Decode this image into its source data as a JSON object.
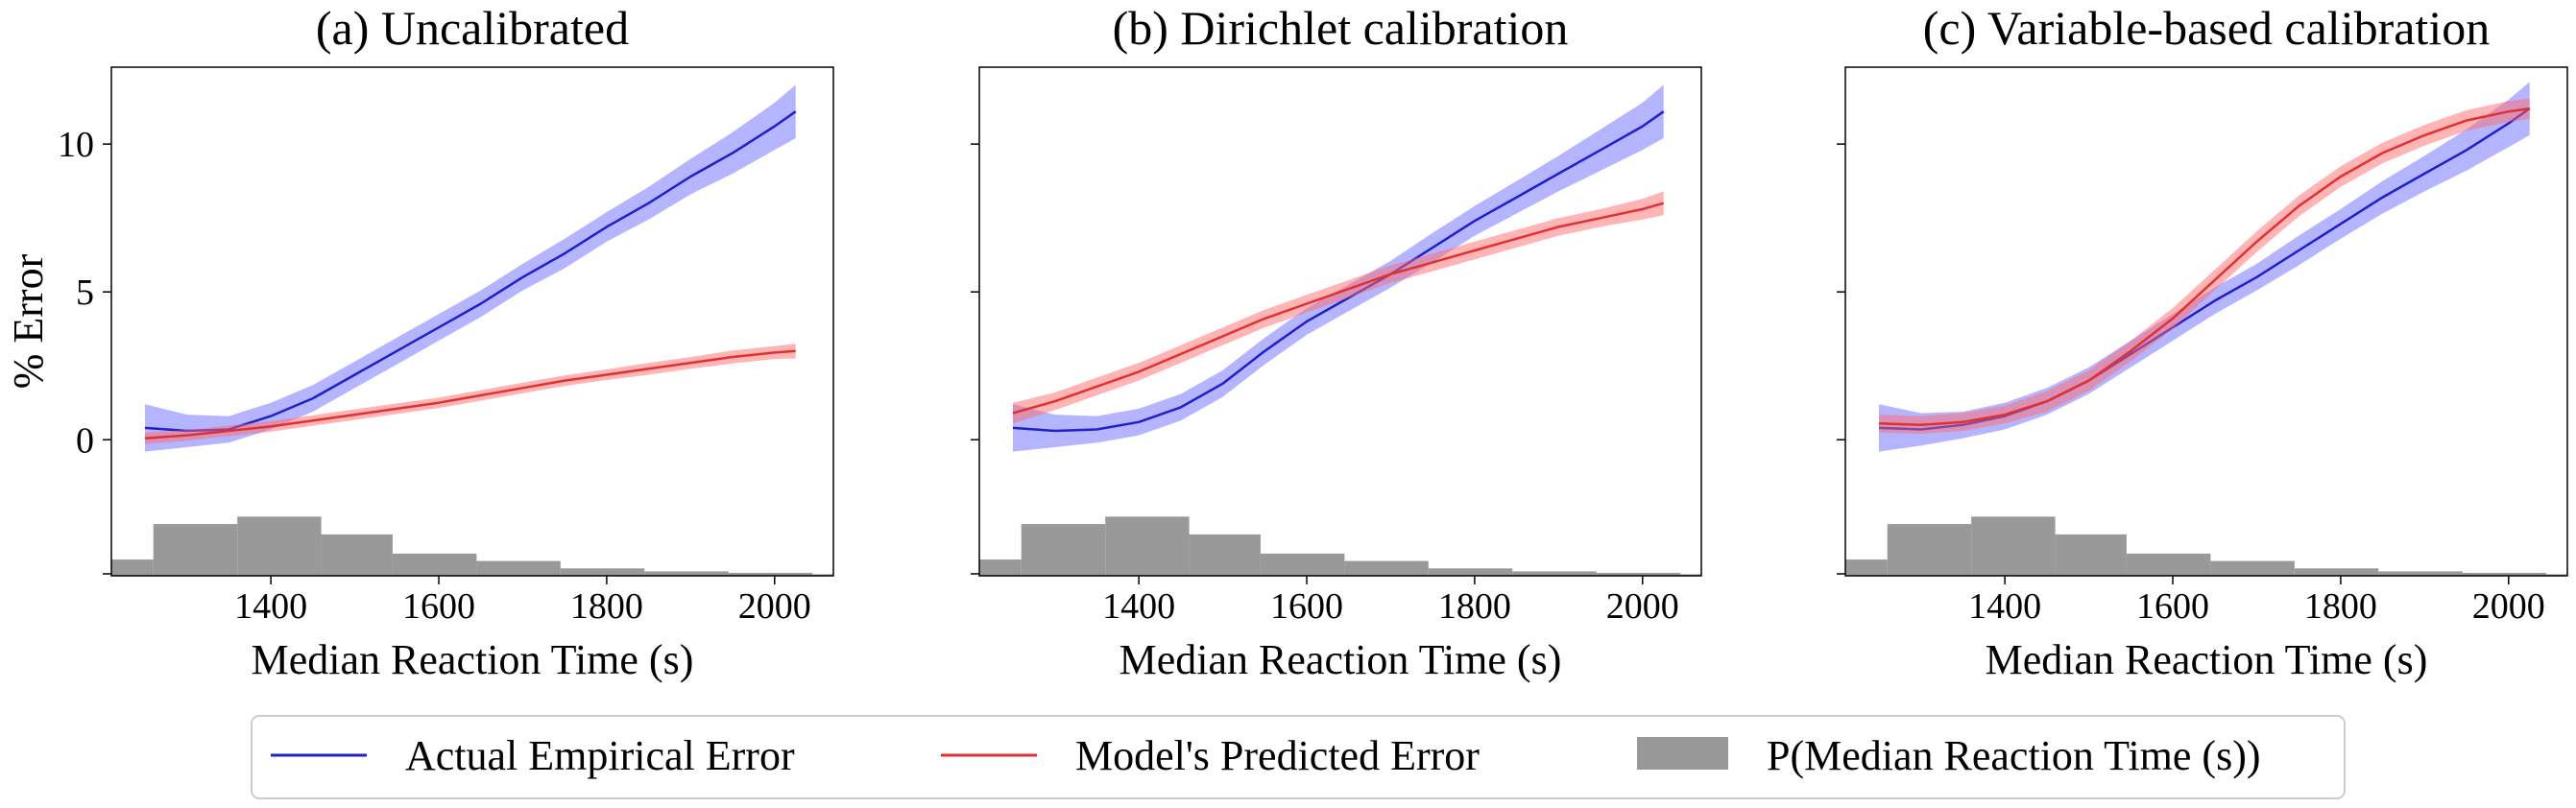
{
  "chart_data": [
    {
      "type": "line",
      "title": "(a) Uncalibrated",
      "xlabel": "Median Reaction Time (s)",
      "ylabel": "% Error",
      "xlim": [
        1210,
        2070
      ],
      "ylim": [
        -4.6,
        12.6
      ],
      "xticks": [
        "1400",
        "1600",
        "1800",
        "2000"
      ],
      "yticks": [
        "0",
        "5",
        "10"
      ],
      "series": [
        {
          "name": "Actual Empirical Error",
          "color": "#1f1fcc",
          "band_color": "#6b6bff",
          "x": [
            1250,
            1300,
            1350,
            1400,
            1450,
            1500,
            1550,
            1600,
            1650,
            1700,
            1750,
            1800,
            1850,
            1900,
            1950,
            2000,
            2025
          ],
          "y": [
            0.4,
            0.3,
            0.35,
            0.8,
            1.4,
            2.2,
            3.0,
            3.8,
            4.6,
            5.5,
            6.3,
            7.2,
            8.0,
            8.9,
            9.7,
            10.6,
            11.1
          ],
          "band": [
            0.8,
            0.55,
            0.45,
            0.45,
            0.45,
            0.45,
            0.45,
            0.45,
            0.45,
            0.45,
            0.5,
            0.5,
            0.55,
            0.6,
            0.7,
            0.8,
            0.9
          ]
        },
        {
          "name": "Model's Predicted Error",
          "color": "#e03030",
          "band_color": "#ff6b6b",
          "x": [
            1250,
            1300,
            1350,
            1400,
            1450,
            1500,
            1550,
            1600,
            1650,
            1700,
            1750,
            1800,
            1850,
            1900,
            1950,
            2000,
            2025
          ],
          "y": [
            0.05,
            0.15,
            0.3,
            0.45,
            0.65,
            0.85,
            1.05,
            1.25,
            1.5,
            1.75,
            2.0,
            2.2,
            2.4,
            2.6,
            2.8,
            2.95,
            3.0
          ],
          "band": [
            0.2,
            0.18,
            0.18,
            0.18,
            0.18,
            0.18,
            0.18,
            0.18,
            0.18,
            0.18,
            0.18,
            0.18,
            0.2,
            0.2,
            0.22,
            0.22,
            0.25
          ]
        }
      ],
      "histogram": {
        "name": "P(Median Reaction Time (s))",
        "color": "#999999",
        "bin_edges": [
          1210,
          1260,
          1360,
          1460,
          1545,
          1645,
          1745,
          1845,
          1945,
          2045,
          2070
        ],
        "values": [
          -4.05,
          -2.85,
          -2.6,
          -3.2,
          -3.85,
          -4.1,
          -4.35,
          -4.45,
          -4.5,
          -4.55
        ]
      }
    },
    {
      "type": "line",
      "title": "(b) Dirichlet calibration",
      "xlabel": "Median Reaction Time (s)",
      "xlim": [
        1210,
        2070
      ],
      "ylim": [
        -4.6,
        12.6
      ],
      "xticks": [
        "1400",
        "1600",
        "1800",
        "2000"
      ],
      "series": [
        {
          "name": "Actual Empirical Error",
          "color": "#1f1fcc",
          "band_color": "#6b6bff",
          "x": [
            1250,
            1300,
            1350,
            1400,
            1450,
            1500,
            1550,
            1600,
            1650,
            1700,
            1750,
            1800,
            1850,
            1900,
            1950,
            2000,
            2025
          ],
          "y": [
            0.4,
            0.3,
            0.35,
            0.6,
            1.1,
            1.9,
            3.0,
            4.0,
            4.8,
            5.6,
            6.5,
            7.4,
            8.2,
            9.0,
            9.8,
            10.6,
            11.1
          ],
          "band": [
            0.8,
            0.55,
            0.45,
            0.45,
            0.45,
            0.45,
            0.45,
            0.45,
            0.45,
            0.45,
            0.5,
            0.5,
            0.55,
            0.6,
            0.7,
            0.8,
            0.9
          ]
        },
        {
          "name": "Model's Predicted Error",
          "color": "#e03030",
          "band_color": "#ff6b6b",
          "x": [
            1250,
            1300,
            1350,
            1400,
            1450,
            1500,
            1550,
            1600,
            1650,
            1700,
            1750,
            1800,
            1850,
            1900,
            1950,
            2000,
            2025
          ],
          "y": [
            0.9,
            1.3,
            1.8,
            2.3,
            2.9,
            3.5,
            4.1,
            4.6,
            5.1,
            5.6,
            6.0,
            6.4,
            6.8,
            7.2,
            7.5,
            7.8,
            8.0
          ],
          "band": [
            0.35,
            0.3,
            0.3,
            0.3,
            0.3,
            0.3,
            0.3,
            0.3,
            0.3,
            0.3,
            0.3,
            0.3,
            0.3,
            0.3,
            0.3,
            0.35,
            0.4
          ]
        }
      ],
      "histogram": {
        "name": "P(Median Reaction Time (s))",
        "color": "#999999",
        "bin_edges": [
          1210,
          1260,
          1360,
          1460,
          1545,
          1645,
          1745,
          1845,
          1945,
          2045,
          2070
        ],
        "values": [
          -4.05,
          -2.85,
          -2.6,
          -3.2,
          -3.85,
          -4.1,
          -4.35,
          -4.45,
          -4.5,
          -4.55
        ]
      }
    },
    {
      "type": "line",
      "title": "(c) Variable-based calibration",
      "xlabel": "Median Reaction Time (s)",
      "xlim": [
        1210,
        2070
      ],
      "ylim": [
        -4.6,
        12.6
      ],
      "xticks": [
        "1400",
        "1600",
        "1800",
        "2000"
      ],
      "series": [
        {
          "name": "Actual Empirical Error",
          "color": "#1f1fcc",
          "band_color": "#6b6bff",
          "x": [
            1250,
            1300,
            1350,
            1400,
            1450,
            1500,
            1550,
            1600,
            1650,
            1700,
            1750,
            1800,
            1850,
            1900,
            1950,
            2000,
            2025
          ],
          "y": [
            0.4,
            0.35,
            0.5,
            0.8,
            1.3,
            2.0,
            2.9,
            3.8,
            4.7,
            5.5,
            6.4,
            7.3,
            8.2,
            9.0,
            9.8,
            10.7,
            11.2
          ],
          "band": [
            0.8,
            0.55,
            0.45,
            0.45,
            0.45,
            0.45,
            0.45,
            0.45,
            0.45,
            0.45,
            0.5,
            0.5,
            0.55,
            0.6,
            0.7,
            0.8,
            0.9
          ]
        },
        {
          "name": "Model's Predicted Error",
          "color": "#e03030",
          "band_color": "#ff6b6b",
          "x": [
            1250,
            1300,
            1350,
            1400,
            1450,
            1500,
            1550,
            1600,
            1650,
            1700,
            1750,
            1800,
            1850,
            1900,
            1950,
            2000,
            2025
          ],
          "y": [
            0.55,
            0.5,
            0.6,
            0.85,
            1.3,
            2.0,
            3.0,
            4.1,
            5.4,
            6.7,
            7.9,
            8.9,
            9.7,
            10.3,
            10.8,
            11.1,
            11.2
          ],
          "band": [
            0.3,
            0.3,
            0.3,
            0.3,
            0.35,
            0.35,
            0.35,
            0.35,
            0.35,
            0.35,
            0.35,
            0.35,
            0.35,
            0.35,
            0.35,
            0.35,
            0.35
          ]
        }
      ],
      "histogram": {
        "name": "P(Median Reaction Time (s))",
        "color": "#999999",
        "bin_edges": [
          1210,
          1260,
          1360,
          1460,
          1545,
          1645,
          1745,
          1845,
          1945,
          2045,
          2070
        ],
        "values": [
          -4.05,
          -2.85,
          -2.6,
          -3.2,
          -3.85,
          -4.1,
          -4.35,
          -4.45,
          -4.5,
          -4.55
        ]
      }
    }
  ],
  "legend": {
    "items": [
      {
        "label": "Actual Empirical Error",
        "kind": "line",
        "color": "#1f1fcc"
      },
      {
        "label": "Model's Predicted Error",
        "kind": "line",
        "color": "#e03030"
      },
      {
        "label": "P(Median Reaction Time (s))",
        "kind": "patch",
        "color": "#999999"
      }
    ]
  }
}
